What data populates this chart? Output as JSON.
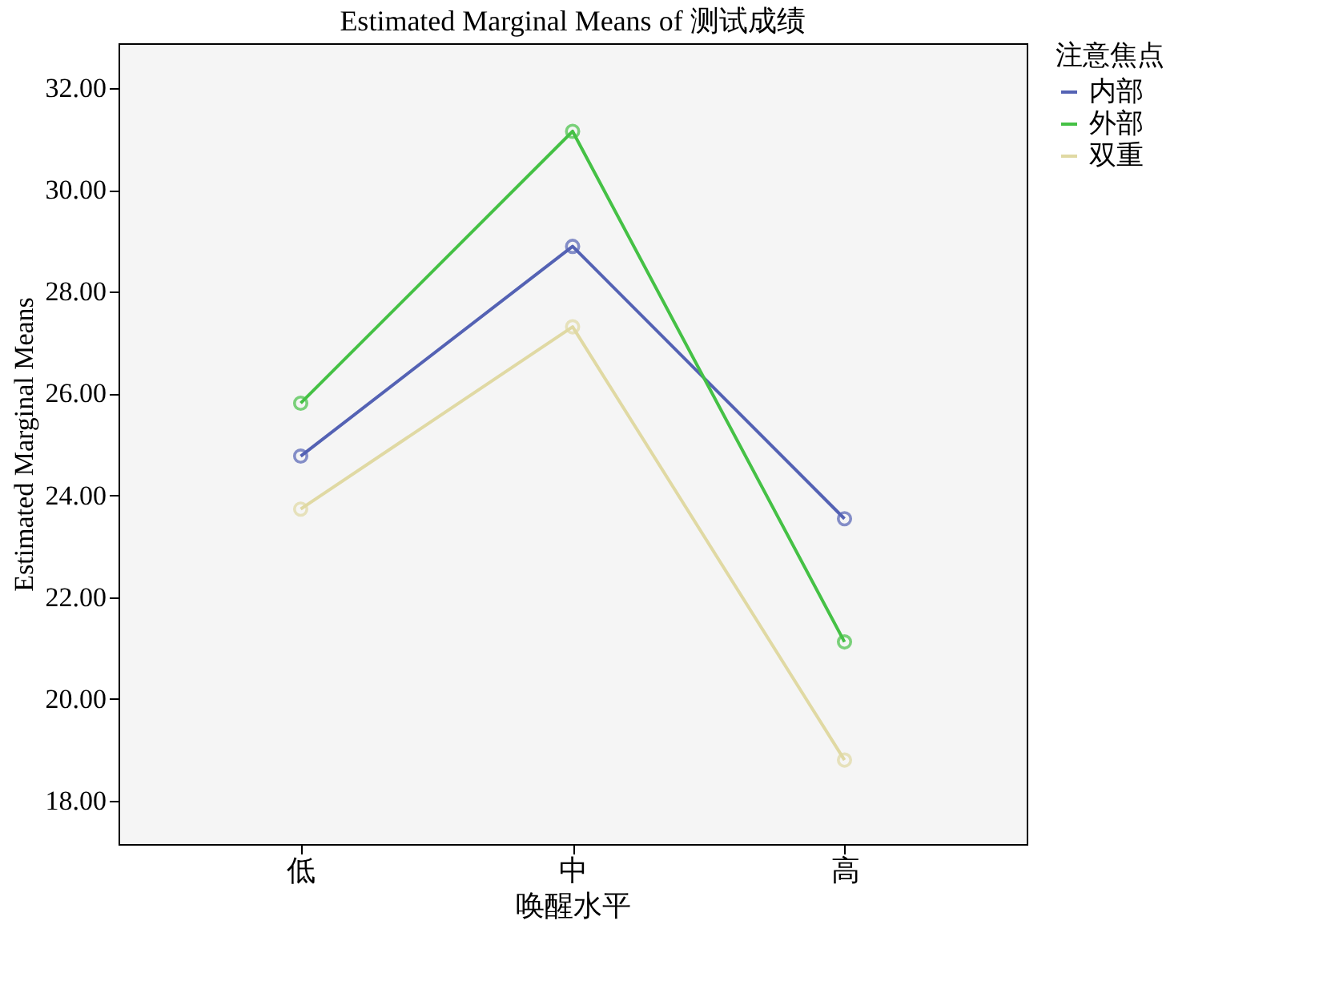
{
  "chart_data": {
    "type": "line",
    "title": "Estimated Marginal Means of 测试成绩",
    "xlabel": "唤醒水平",
    "ylabel": "Estimated Marginal Means",
    "legend_title": "注意焦点",
    "categories": [
      "低",
      "中",
      "高"
    ],
    "series": [
      {
        "name": "内部",
        "color": "#5462b4",
        "values": [
          24.77,
          28.89,
          23.54
        ]
      },
      {
        "name": "外部",
        "color": "#45c145",
        "values": [
          25.81,
          31.15,
          21.12
        ]
      },
      {
        "name": "双重",
        "color": "#e0d9a3",
        "values": [
          23.73,
          27.31,
          18.8
        ]
      }
    ],
    "ylim": [
      17.15,
      32.88
    ],
    "yticks": [
      {
        "value": 18,
        "label": "18.00"
      },
      {
        "value": 20,
        "label": "20.00"
      },
      {
        "value": 22,
        "label": "22.00"
      },
      {
        "value": 24,
        "label": "24.00"
      },
      {
        "value": 26,
        "label": "26.00"
      },
      {
        "value": 28,
        "label": "28.00"
      },
      {
        "value": 30,
        "label": "30.00"
      },
      {
        "value": 32,
        "label": "32.00"
      }
    ],
    "grid": false,
    "legend": "top right",
    "marker": "circle",
    "line_style": "solid"
  }
}
